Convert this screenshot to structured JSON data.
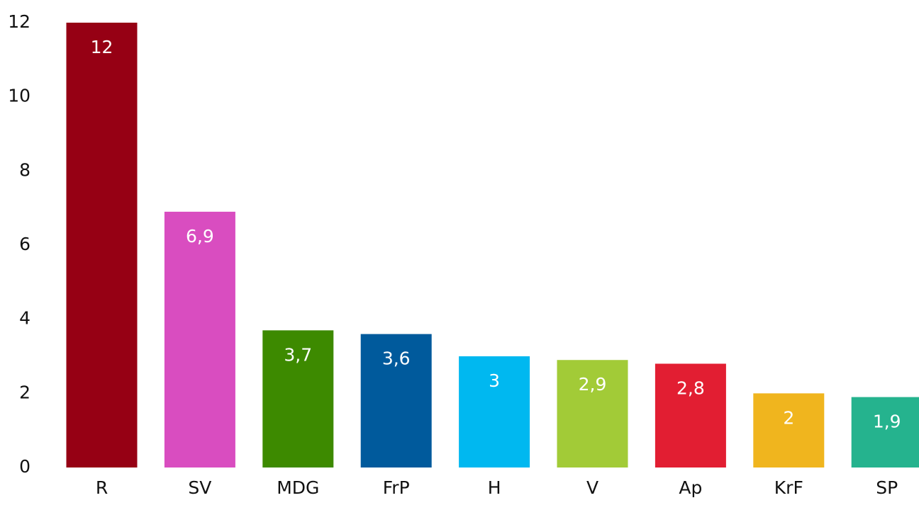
{
  "chart_data": {
    "type": "bar",
    "categories": [
      "R",
      "SV",
      "MDG",
      "FrP",
      "H",
      "V",
      "Ap",
      "KrF",
      "SP"
    ],
    "values": [
      12,
      6.9,
      3.7,
      3.6,
      3,
      2.9,
      2.8,
      2,
      1.9
    ],
    "value_labels": [
      "12",
      "6,9",
      "3,7",
      "3,6",
      "3",
      "2,9",
      "2,8",
      "2",
      "1,9"
    ],
    "colors": [
      "#960014",
      "#d94dc0",
      "#3d8a00",
      "#005a9c",
      "#00b8f0",
      "#a2cb37",
      "#e21e32",
      "#f0b51e",
      "#25b38e"
    ],
    "ylim": [
      0,
      12
    ],
    "yticks": [
      0,
      2,
      4,
      6,
      8,
      10,
      12
    ],
    "grid": false
  }
}
